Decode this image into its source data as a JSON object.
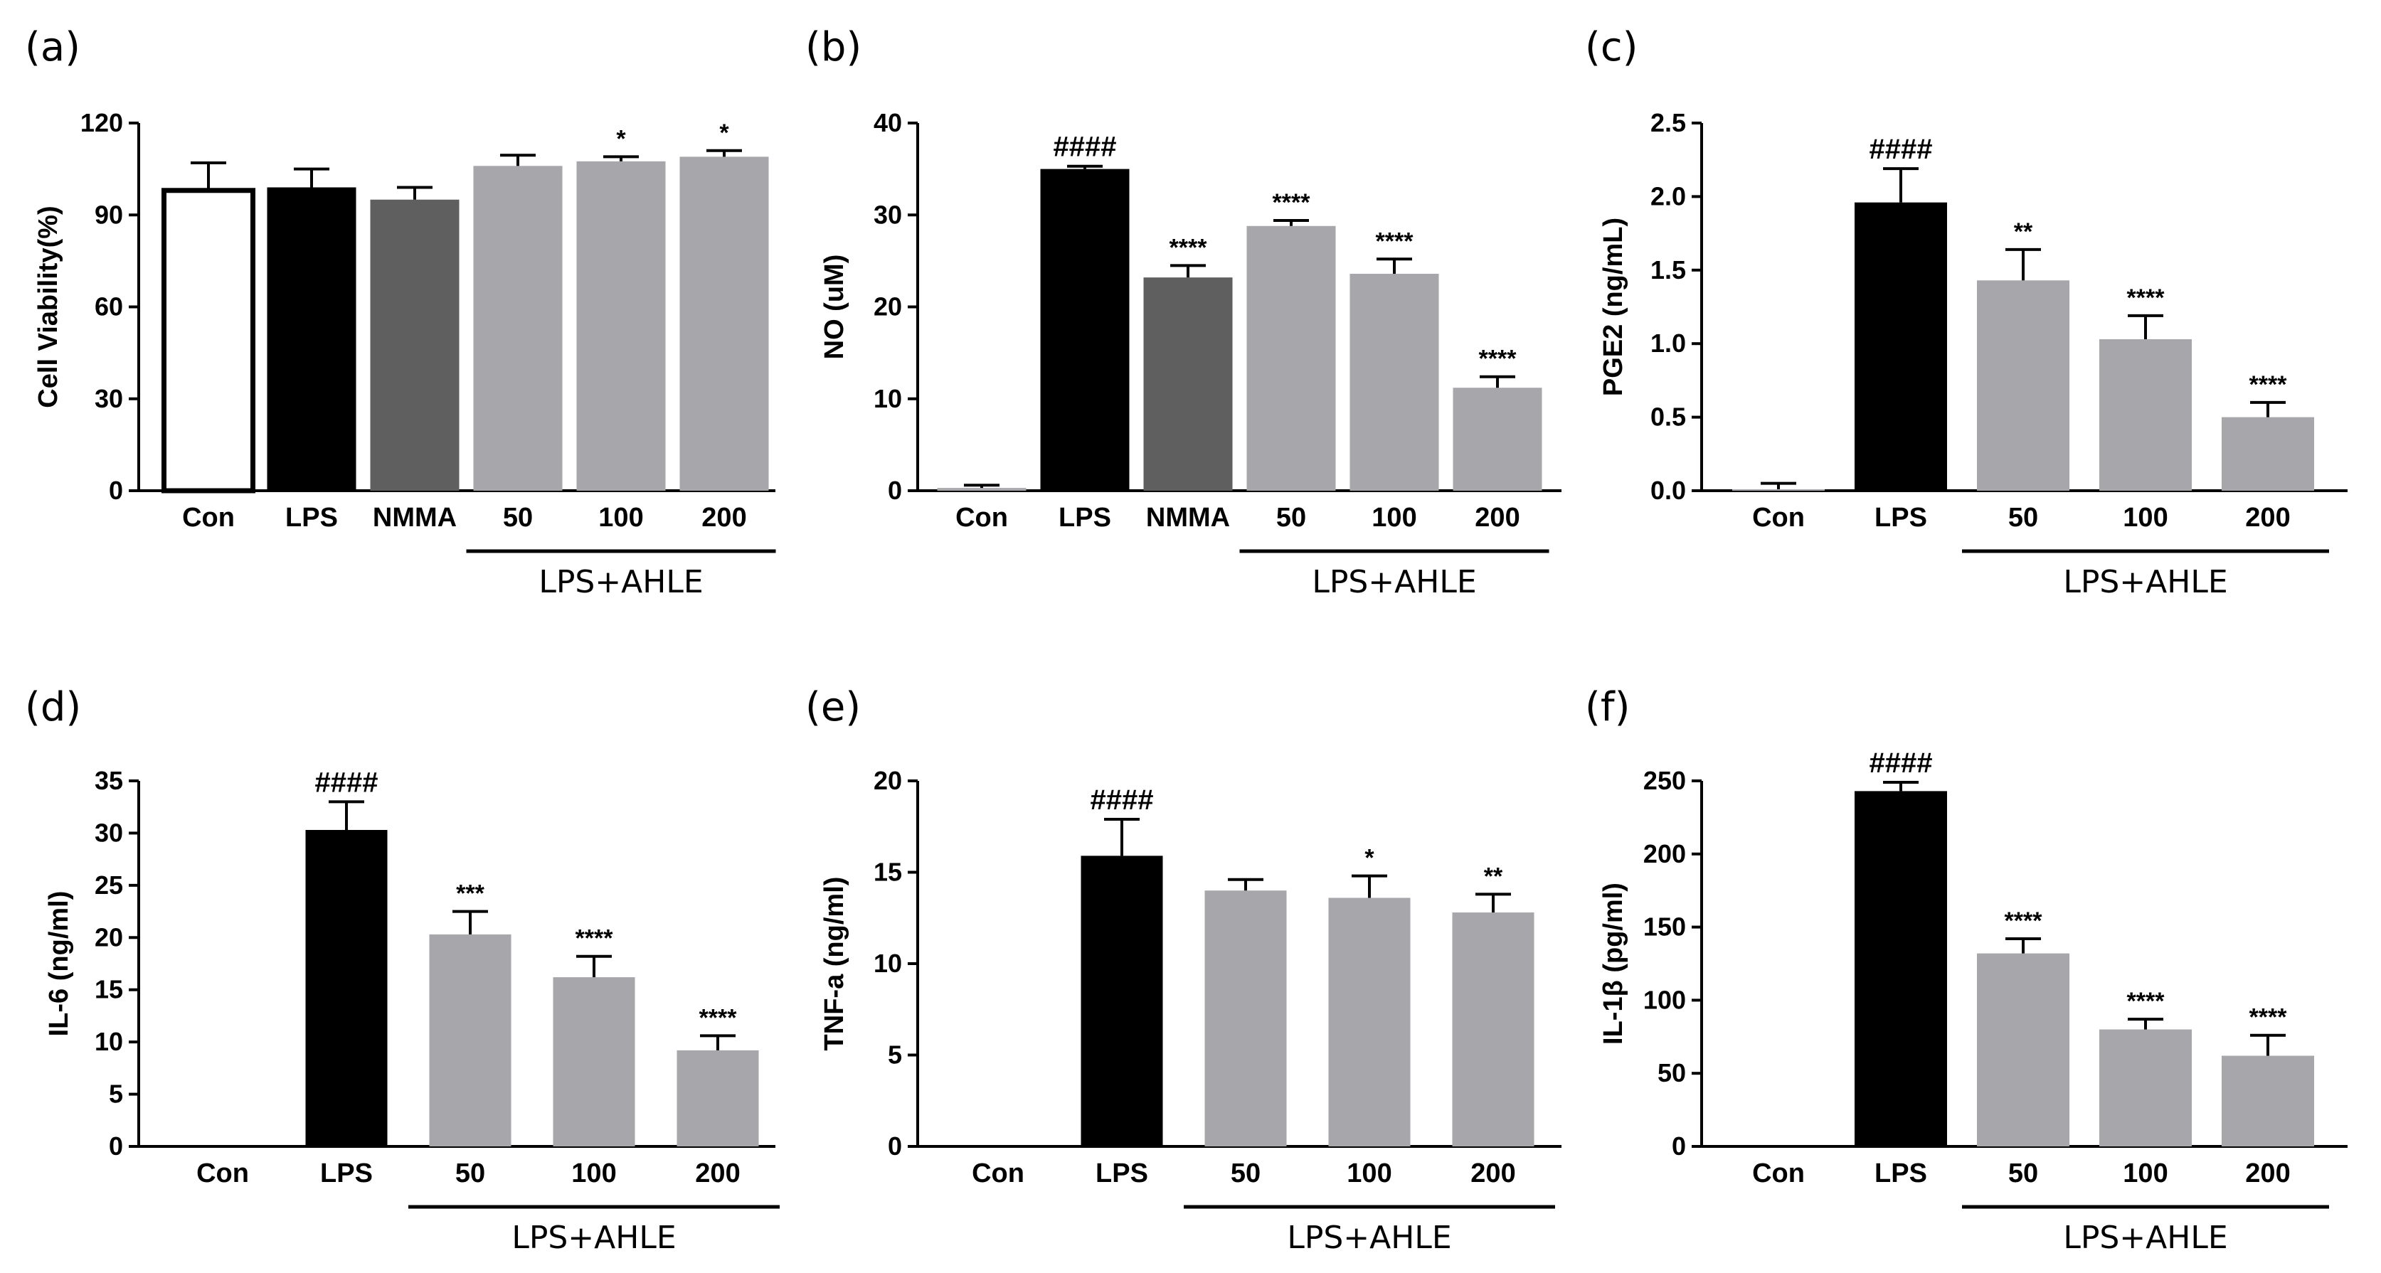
{
  "chart_data": [
    {
      "type": "bar",
      "panel_label": "(a)",
      "ylabel": "Cell Viability(%)",
      "ylim": [
        0,
        120
      ],
      "yticks": [
        "0",
        "30",
        "60",
        "90",
        "120"
      ],
      "categories": [
        "Con",
        "LPS",
        "NMMA",
        "50",
        "100",
        "200"
      ],
      "values": [
        98,
        99,
        95,
        106,
        107.5,
        109
      ],
      "errors": [
        9,
        6,
        4,
        3.5,
        1.5,
        2
      ],
      "annotations": [
        "",
        "",
        "",
        "",
        "*",
        "*"
      ],
      "group_label": "LPS+AHLE",
      "group_span": [
        3,
        5
      ],
      "colors": [
        "#ffffff",
        "#000000",
        "#5f5f5f",
        "#a6a6ab",
        "#a6a6ab",
        "#a6a6ab"
      ]
    },
    {
      "type": "bar",
      "panel_label": "(b)",
      "ylabel": "NO (uM)",
      "ylim": [
        0,
        40
      ],
      "yticks": [
        "0",
        "10",
        "20",
        "30",
        "40"
      ],
      "categories": [
        "Con",
        "LPS",
        "NMMA",
        "50",
        "100",
        "200"
      ],
      "values": [
        0.3,
        35,
        23.2,
        28.8,
        23.6,
        11.2
      ],
      "errors": [
        0.3,
        0.3,
        1.3,
        0.6,
        1.6,
        1.2
      ],
      "annotations": [
        "",
        "####",
        "****",
        "****",
        "****",
        "****"
      ],
      "group_label": "LPS+AHLE",
      "group_span": [
        3,
        5
      ],
      "colors": [
        "#a6a6ab",
        "#000000",
        "#5f5f5f",
        "#a6a6ab",
        "#a6a6ab",
        "#a6a6ab"
      ]
    },
    {
      "type": "bar",
      "panel_label": "(c)",
      "ylabel": "PGE2 (ng/mL)",
      "ylim": [
        0,
        2.5
      ],
      "yticks": [
        "0.0",
        "0.5",
        "1.0",
        "1.5",
        "2.0",
        "2.5"
      ],
      "categories": [
        "Con",
        "LPS",
        "50",
        "100",
        "200"
      ],
      "values": [
        0.01,
        1.96,
        1.43,
        1.03,
        0.5
      ],
      "errors": [
        0.04,
        0.23,
        0.21,
        0.16,
        0.1
      ],
      "annotations": [
        "",
        "####",
        "**",
        "****",
        "****"
      ],
      "group_label": "LPS+AHLE",
      "group_span": [
        2,
        4
      ],
      "colors": [
        "#a6a6ab",
        "#000000",
        "#a6a6ab",
        "#a6a6ab",
        "#a6a6ab"
      ]
    },
    {
      "type": "bar",
      "panel_label": "(d)",
      "ylabel": "IL-6  (ng/ml)",
      "ylim": [
        0,
        35
      ],
      "yticks": [
        "0",
        "5",
        "10",
        "15",
        "20",
        "25",
        "30",
        "35"
      ],
      "categories": [
        "Con",
        "LPS",
        "50",
        "100",
        "200"
      ],
      "values": [
        0,
        30.3,
        20.3,
        16.2,
        9.2
      ],
      "errors": [
        0,
        2.7,
        2.2,
        2,
        1.4
      ],
      "annotations": [
        "",
        "####",
        "***",
        "****",
        "****"
      ],
      "group_label": "LPS+AHLE",
      "group_span": [
        2,
        4
      ],
      "colors": [
        "#a6a6ab",
        "#000000",
        "#a6a6ab",
        "#a6a6ab",
        "#a6a6ab"
      ]
    },
    {
      "type": "bar",
      "panel_label": "(e)",
      "ylabel": "TNF-a (ng/ml)",
      "ylim": [
        0,
        20
      ],
      "yticks": [
        "0",
        "5",
        "10",
        "15",
        "20"
      ],
      "categories": [
        "Con",
        "LPS",
        "50",
        "100",
        "200"
      ],
      "values": [
        0,
        15.9,
        14,
        13.6,
        12.8
      ],
      "errors": [
        0,
        2,
        0.6,
        1.2,
        1
      ],
      "annotations": [
        "",
        "####",
        "",
        "*",
        "**"
      ],
      "group_label": "LPS+AHLE",
      "group_span": [
        2,
        4
      ],
      "colors": [
        "#a6a6ab",
        "#000000",
        "#a6a6ab",
        "#a6a6ab",
        "#a6a6ab"
      ]
    },
    {
      "type": "bar",
      "panel_label": "(f)",
      "ylabel": "IL-1β  (pg/ml)",
      "ylim": [
        0,
        250
      ],
      "yticks": [
        "0",
        "50",
        "100",
        "150",
        "200",
        "250"
      ],
      "categories": [
        "Con",
        "LPS",
        "50",
        "100",
        "200"
      ],
      "values": [
        0,
        243,
        132,
        80,
        62
      ],
      "errors": [
        0,
        6,
        10,
        7,
        14
      ],
      "annotations": [
        "",
        "####",
        "****",
        "****",
        "****"
      ],
      "group_label": "LPS+AHLE",
      "group_span": [
        2,
        4
      ],
      "colors": [
        "#a6a6ab",
        "#000000",
        "#a6a6ab",
        "#a6a6ab",
        "#a6a6ab"
      ]
    }
  ]
}
